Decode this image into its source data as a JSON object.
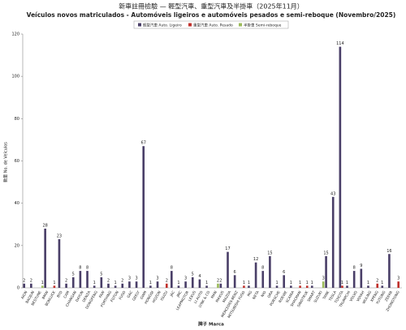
{
  "chart_data": {
    "type": "bar",
    "title": "新車註冊檢驗 — 輕型汽車、重型汽車及半掛車（2025年11月）",
    "subtitle": "Veículos novos matriculados  - Automóveis ligeiros e automóveis pesados e semi-reboque (Novembro/2025)",
    "x_label": "牌子 Marca",
    "y_label": "數量 No. de Veículos",
    "categories": [
      "AION",
      "BAOJUN",
      "BESTUNE",
      "BMW",
      "BONLUCK",
      "BYD",
      "CAM",
      "CHANGAN",
      "DAYUN",
      "DENZA",
      "DONGFENG",
      "FAW",
      "FORTHING",
      "FOTON",
      "FUSO",
      "GAC",
      "GEELY",
      "GWM",
      "HONGQI",
      "HOZON",
      "ISUZU",
      "JAC",
      "JMC",
      "LEAPMOTOR",
      "LEXUS",
      "LI AUTO",
      "LYNK & CO",
      "MAN",
      "MAXUS",
      "MAZDA",
      "MERCEDES-BENZ",
      "MITSUBISHI FUSO",
      "MG",
      "NETA",
      "NIO",
      "ORA",
      "PORSCHE",
      "ROEWE",
      "SCANIA",
      "SHACMAN",
      "SINOTRUK",
      "SMART",
      "SUZUKI",
      "TANK",
      "TESLA",
      "TOYOTA",
      "TRUMPCHI",
      "VOLVO",
      "VOYAH",
      "WULING",
      "XPENG",
      "YUTONG",
      "ZEEKR",
      "ZHONGTONG"
    ],
    "series": [
      {
        "name": "輕型汽車 Auto. Ligeiro",
        "color": "#4a3f68",
        "values": [
          2,
          2,
          null,
          28,
          null,
          23,
          2,
          5,
          8,
          8,
          1,
          5,
          2,
          1,
          2,
          3,
          3,
          67,
          1,
          3,
          null,
          8,
          1,
          3,
          5,
          4,
          1,
          null,
          2,
          17,
          6,
          null,
          1,
          12,
          8,
          15,
          1,
          6,
          1,
          null,
          null,
          1,
          null,
          15,
          43,
          114,
          1,
          8,
          9,
          1,
          null,
          1,
          16,
          null
        ]
      },
      {
        "name": "重型汽車 Auto. Pesado",
        "color": "#c0302b",
        "values": [
          null,
          null,
          null,
          null,
          1,
          null,
          null,
          null,
          null,
          null,
          null,
          null,
          null,
          null,
          null,
          null,
          null,
          null,
          null,
          null,
          2,
          null,
          null,
          null,
          null,
          null,
          null,
          null,
          null,
          null,
          null,
          1,
          null,
          null,
          null,
          null,
          null,
          null,
          null,
          1,
          1,
          null,
          null,
          null,
          null,
          1,
          null,
          null,
          null,
          null,
          2,
          null,
          null,
          3
        ]
      },
      {
        "name": "半掛車 Semi-reboque",
        "color": "#9bbb59",
        "values": [
          null,
          null,
          1,
          null,
          null,
          null,
          null,
          null,
          null,
          null,
          null,
          null,
          null,
          null,
          null,
          null,
          null,
          null,
          null,
          null,
          null,
          null,
          null,
          null,
          null,
          null,
          null,
          2,
          null,
          null,
          null,
          null,
          null,
          null,
          null,
          null,
          null,
          null,
          null,
          null,
          null,
          null,
          3,
          null,
          null,
          null,
          null,
          null,
          null,
          null,
          null,
          null,
          null,
          null
        ]
      }
    ],
    "ylim": [
      0,
      120
    ],
    "yticks": [
      0,
      20,
      40,
      60,
      80,
      100,
      120
    ],
    "grid": false
  }
}
